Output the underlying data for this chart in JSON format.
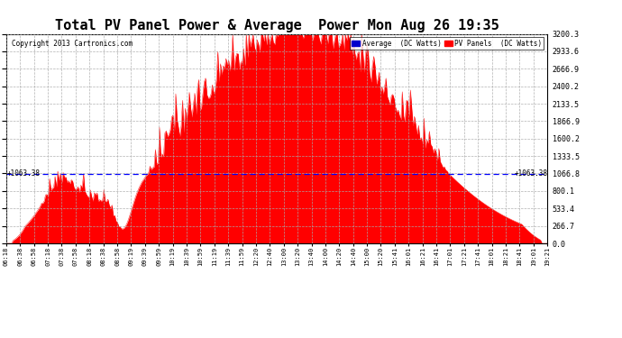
{
  "title": "Total PV Panel Power & Average  Power Mon Aug 26 19:35",
  "copyright": "Copyright 2013 Cartronics.com",
  "ylim": [
    0,
    3200.3
  ],
  "yticks": [
    0.0,
    266.7,
    533.4,
    800.1,
    1066.8,
    1333.5,
    1600.2,
    1866.9,
    2133.5,
    2400.2,
    2666.9,
    2933.6,
    3200.3
  ],
  "average_line": 1063.38,
  "average_label": "1063.38",
  "bg_color": "#ffffff",
  "plot_bg_color": "#ffffff",
  "grid_color": "#aaaaaa",
  "fill_color": "#ff0000",
  "avg_line_color": "#0000ff",
  "title_fontsize": 11,
  "legend_avg_color": "#0000cc",
  "legend_pv_color": "#ff0000",
  "xtick_labels": [
    "06:18",
    "06:38",
    "06:58",
    "07:18",
    "07:38",
    "07:58",
    "08:18",
    "08:38",
    "08:58",
    "09:19",
    "09:39",
    "09:59",
    "10:19",
    "10:39",
    "10:59",
    "11:19",
    "11:39",
    "11:59",
    "12:20",
    "12:40",
    "13:00",
    "13:20",
    "13:40",
    "14:00",
    "14:20",
    "14:40",
    "15:00",
    "15:20",
    "15:41",
    "16:01",
    "16:21",
    "16:41",
    "17:01",
    "17:21",
    "17:41",
    "18:01",
    "18:21",
    "18:41",
    "19:01",
    "19:21"
  ]
}
